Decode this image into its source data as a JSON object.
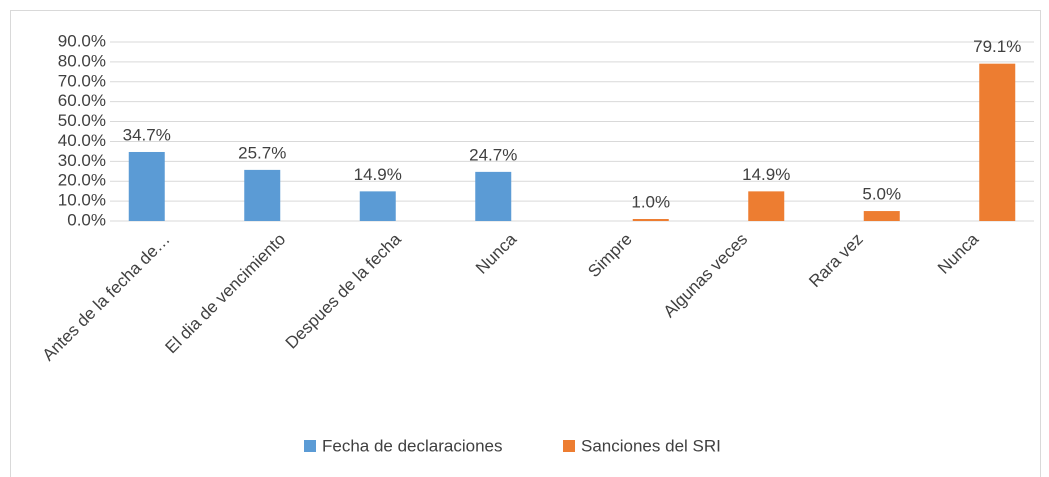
{
  "chart_data": {
    "type": "bar",
    "categories": [
      "Antes de la fecha de…",
      "El dia de vencimiento",
      "Despues de la fecha",
      "Nunca",
      "Simpre",
      "Algunas veces",
      "Rara vez",
      "Nunca"
    ],
    "series": [
      {
        "name": "Fecha de declaraciones",
        "color": "#5b9bd5",
        "values": [
          34.7,
          25.7,
          14.9,
          24.7,
          null,
          null,
          null,
          null
        ],
        "value_labels": [
          "34.7%",
          "25.7%",
          "14.9%",
          "24.7%",
          null,
          null,
          null,
          null
        ]
      },
      {
        "name": "Sanciones del SRI",
        "color": "#ed7d31",
        "values": [
          null,
          null,
          null,
          null,
          1.0,
          14.9,
          5.0,
          79.1
        ],
        "value_labels": [
          null,
          null,
          null,
          null,
          "1.0%",
          "14.9%",
          "5.0%",
          "79.1%"
        ]
      }
    ],
    "ylim": [
      0,
      90
    ],
    "yticks": [
      {
        "value": 0,
        "label": "0.0%"
      },
      {
        "value": 10,
        "label": "10.0%"
      },
      {
        "value": 20,
        "label": "20.0%"
      },
      {
        "value": 30,
        "label": "30.0%"
      },
      {
        "value": 40,
        "label": "40.0%"
      },
      {
        "value": 50,
        "label": "50.0%"
      },
      {
        "value": 60,
        "label": "60.0%"
      },
      {
        "value": 70,
        "label": "70.0%"
      },
      {
        "value": 80,
        "label": "80.0%"
      },
      {
        "value": 90,
        "label": "90.0%"
      }
    ],
    "grid": true,
    "legend": "bottom"
  }
}
